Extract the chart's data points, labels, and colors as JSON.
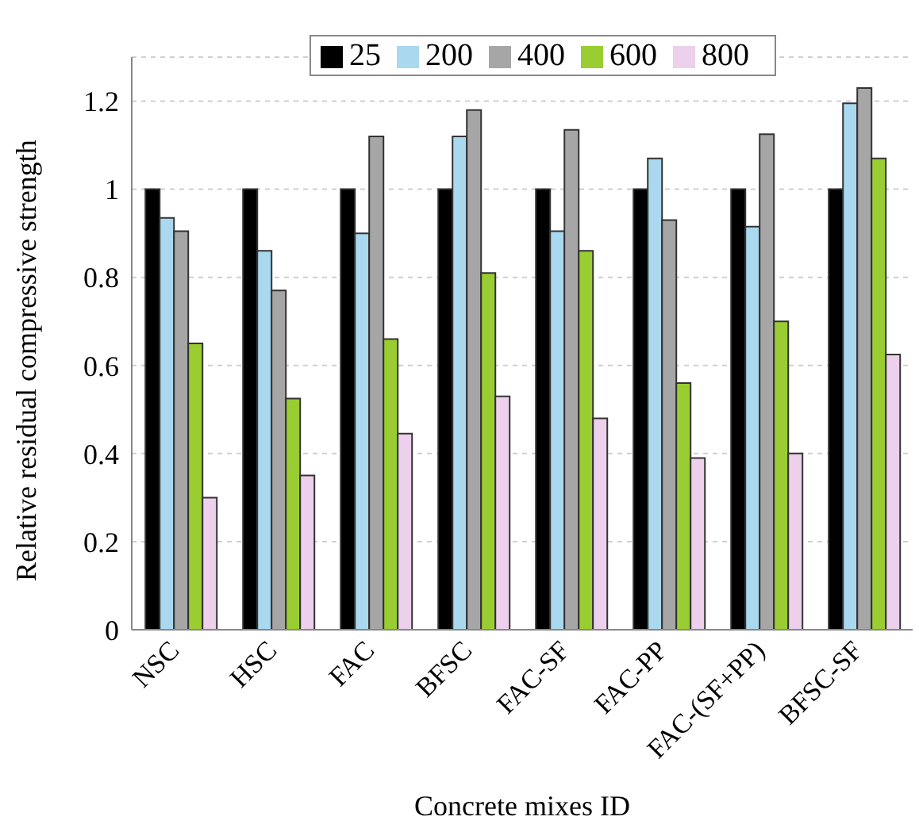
{
  "chart_data": {
    "type": "bar",
    "xlabel": "Concrete mixes ID",
    "ylabel": "Relative residual compressive strength",
    "categories": [
      "NSC",
      "HSC",
      "FAC",
      "BFSC",
      "FAC-SF",
      "FAC-PP",
      "FAC-(SF+PP)",
      "BFSC-SF"
    ],
    "series": [
      {
        "name": "25",
        "color": "#000000",
        "values": [
          1,
          1,
          1,
          1,
          1,
          1,
          1,
          1
        ]
      },
      {
        "name": "200",
        "color": "#a9d8ef",
        "values": [
          0.935,
          0.86,
          0.9,
          1.12,
          0.905,
          1.07,
          0.915,
          1.195
        ]
      },
      {
        "name": "400",
        "color": "#a6a6a6",
        "values": [
          0.905,
          0.77,
          1.12,
          1.18,
          1.135,
          0.93,
          1.125,
          1.23
        ]
      },
      {
        "name": "600",
        "color": "#9acd32",
        "values": [
          0.65,
          0.525,
          0.66,
          0.81,
          0.86,
          0.56,
          0.7,
          1.07
        ]
      },
      {
        "name": "800",
        "color": "#ecd0ec",
        "values": [
          0.3,
          0.35,
          0.445,
          0.53,
          0.48,
          0.39,
          0.4,
          0.625
        ]
      }
    ],
    "ylim": [
      0,
      1.3
    ],
    "yticks": [
      0,
      0.2,
      0.4,
      0.6,
      0.8,
      1,
      1.2
    ],
    "grid": "y",
    "legend": "top right"
  }
}
